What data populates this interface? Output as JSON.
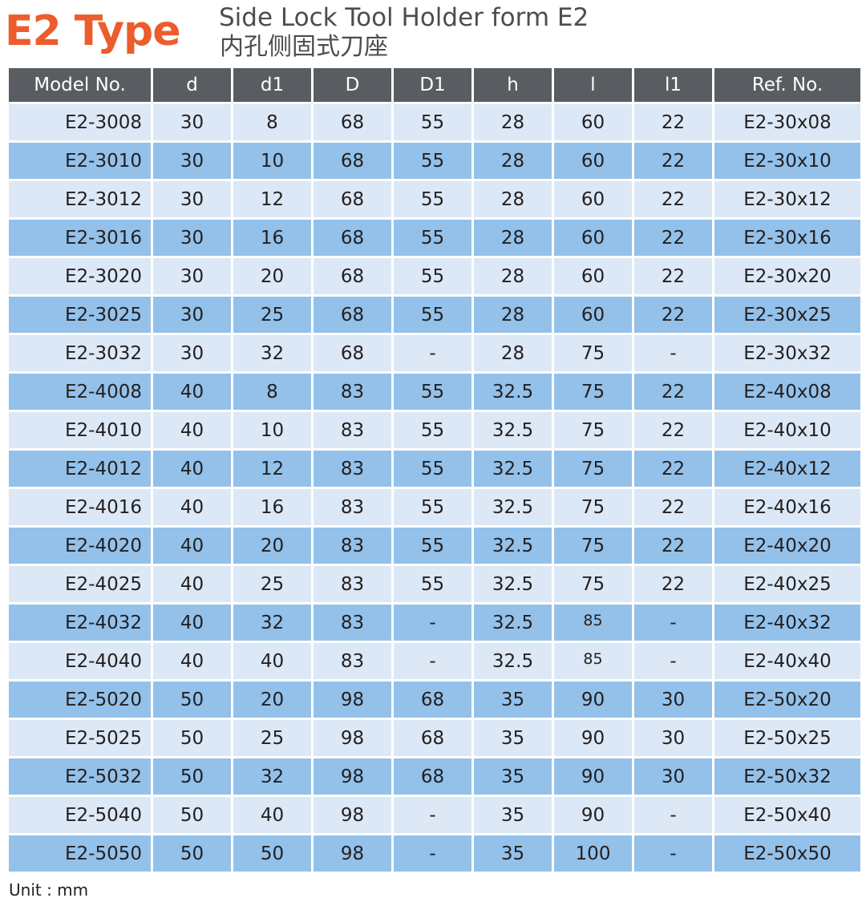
{
  "header": {
    "type_title": "E2 Type",
    "subtitle_en": "Side Lock Tool Holder form E2",
    "subtitle_zh": "内孔侧固式刀座"
  },
  "table": {
    "columns": [
      "Model No.",
      "d",
      "d1",
      "D",
      "D1",
      "h",
      "l",
      "l1",
      "Ref. No."
    ],
    "rows": [
      [
        "E2-3008",
        "30",
        "8",
        "68",
        "55",
        "28",
        "60",
        "22",
        "E2-30x08"
      ],
      [
        "E2-3010",
        "30",
        "10",
        "68",
        "55",
        "28",
        "60",
        "22",
        "E2-30x10"
      ],
      [
        "E2-3012",
        "30",
        "12",
        "68",
        "55",
        "28",
        "60",
        "22",
        "E2-30x12"
      ],
      [
        "E2-3016",
        "30",
        "16",
        "68",
        "55",
        "28",
        "60",
        "22",
        "E2-30x16"
      ],
      [
        "E2-3020",
        "30",
        "20",
        "68",
        "55",
        "28",
        "60",
        "22",
        "E2-30x20"
      ],
      [
        "E2-3025",
        "30",
        "25",
        "68",
        "55",
        "28",
        "60",
        "22",
        "E2-30x25"
      ],
      [
        "E2-3032",
        "30",
        "32",
        "68",
        "-",
        "28",
        "75",
        "-",
        "E2-30x32"
      ],
      [
        "E2-4008",
        "40",
        "8",
        "83",
        "55",
        "32.5",
        "75",
        "22",
        "E2-40x08"
      ],
      [
        "E2-4010",
        "40",
        "10",
        "83",
        "55",
        "32.5",
        "75",
        "22",
        "E2-40x10"
      ],
      [
        "E2-4012",
        "40",
        "12",
        "83",
        "55",
        "32.5",
        "75",
        "22",
        "E2-40x12"
      ],
      [
        "E2-4016",
        "40",
        "16",
        "83",
        "55",
        "32.5",
        "75",
        "22",
        "E2-40x16"
      ],
      [
        "E2-4020",
        "40",
        "20",
        "83",
        "55",
        "32.5",
        "75",
        "22",
        "E2-40x20"
      ],
      [
        "E2-4025",
        "40",
        "25",
        "83",
        "55",
        "32.5",
        "75",
        "22",
        "E2-40x25"
      ],
      [
        "E2-4032",
        "40",
        "32",
        "83",
        "-",
        "32.5",
        "85",
        "-",
        "E2-40x32"
      ],
      [
        "E2-4040",
        "40",
        "40",
        "83",
        "-",
        "32.5",
        "85",
        "-",
        "E2-40x40"
      ],
      [
        "E2-5020",
        "50",
        "20",
        "98",
        "68",
        "35",
        "90",
        "30",
        "E2-50x20"
      ],
      [
        "E2-5025",
        "50",
        "25",
        "98",
        "68",
        "35",
        "90",
        "30",
        "E2-50x25"
      ],
      [
        "E2-5032",
        "50",
        "32",
        "98",
        "68",
        "35",
        "90",
        "30",
        "E2-50x32"
      ],
      [
        "E2-5040",
        "50",
        "40",
        "98",
        "-",
        "35",
        "90",
        "-",
        "E2-50x40"
      ],
      [
        "E2-5050",
        "50",
        "50",
        "98",
        "-",
        "35",
        "100",
        "-",
        "E2-50x50"
      ]
    ]
  },
  "footer": {
    "unit": "Unit : mm"
  },
  "colors": {
    "title_orange": "#ec5c2c",
    "header_gray": "#595c61",
    "row_light": "#dce8f6",
    "row_dark": "#93c1ea"
  }
}
